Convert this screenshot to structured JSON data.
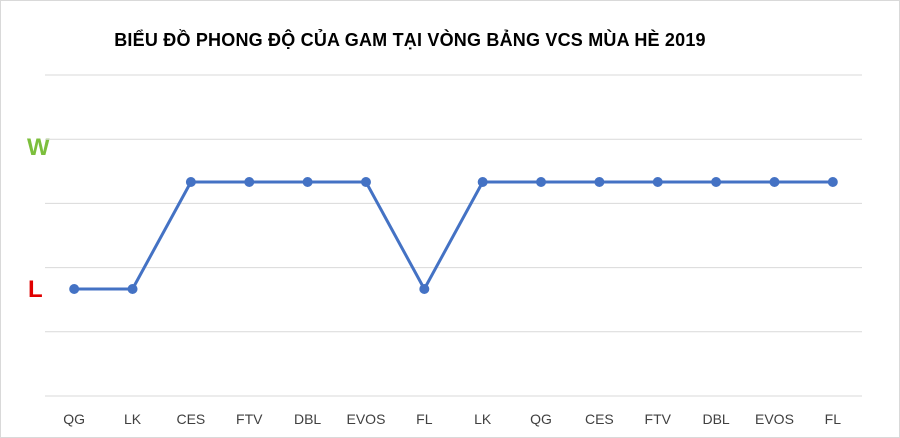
{
  "chart_data": {
    "type": "line",
    "title": "BIỂU ĐỒ PHONG ĐỘ CỦA GAM TẠI VÒNG BẢNG VCS MÙA HÈ 2019",
    "categories": [
      "QG",
      "LK",
      "CES",
      "FTV",
      "DBL",
      "EVOS",
      "FL",
      "LK",
      "QG",
      "CES",
      "FTV",
      "DBL",
      "EVOS",
      "FL"
    ],
    "series": [
      {
        "values": [
          0,
          0,
          1,
          1,
          1,
          1,
          0,
          1,
          1,
          1,
          1,
          1,
          1,
          1
        ]
      }
    ],
    "y_labels": {
      "win": "W",
      "loss": "L"
    },
    "ylim": [
      -1,
      2
    ],
    "grid": true,
    "line_color": "#4472c4",
    "win_label_color": "#7cbf3c",
    "loss_label_color": "#e00000"
  }
}
